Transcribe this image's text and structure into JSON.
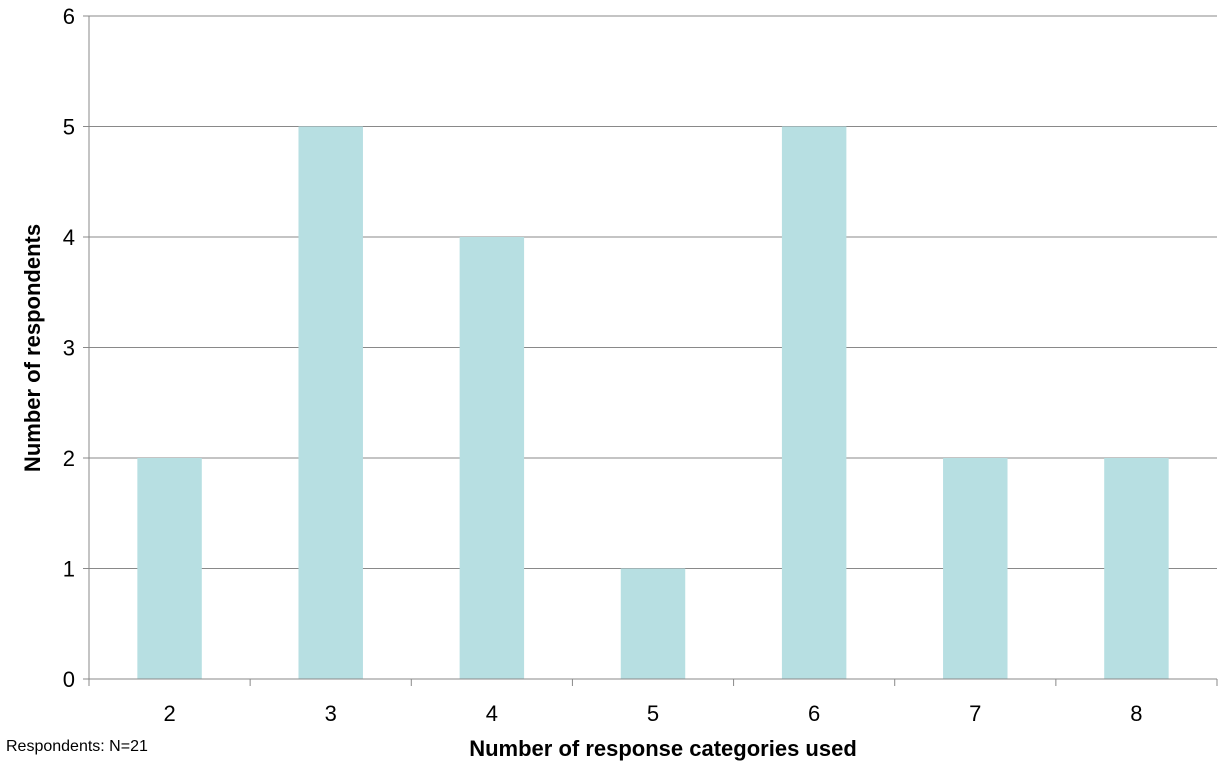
{
  "chart_data": {
    "type": "bar",
    "categories": [
      "2",
      "3",
      "4",
      "5",
      "6",
      "7",
      "8"
    ],
    "values": [
      2,
      5,
      4,
      1,
      5,
      2,
      2
    ],
    "xlabel": "Number of response categories used",
    "ylabel": "Number of respondents",
    "ylim": [
      0,
      6
    ],
    "yticks": [
      0,
      1,
      2,
      3,
      4,
      5,
      6
    ],
    "grid": true,
    "legend": "none",
    "bar_color": "#b7dfe2",
    "grid_color": "#898989"
  },
  "note": "Respondents: N=21"
}
